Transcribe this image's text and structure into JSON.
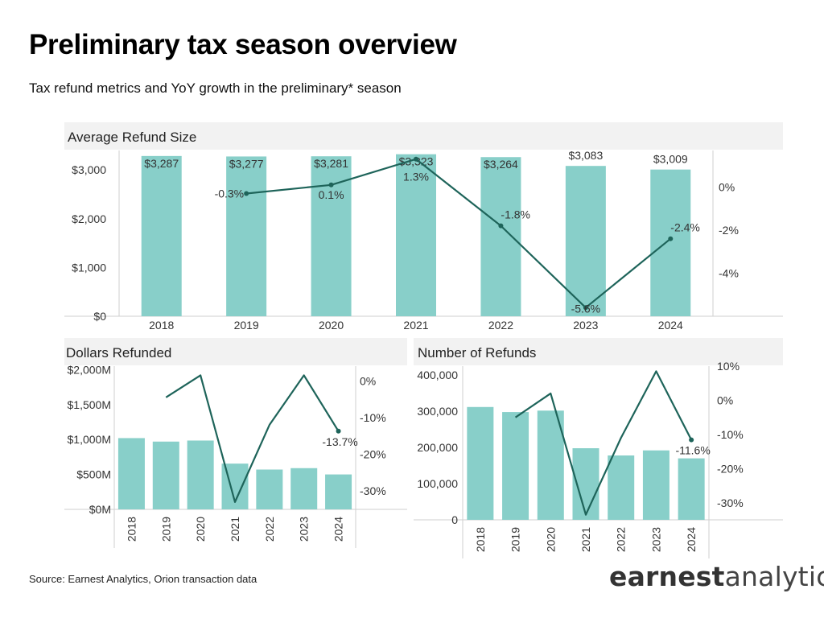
{
  "header": {
    "title": "Preliminary tax season overview",
    "subtitle": "Tax refund metrics and YoY growth in the preliminary* season"
  },
  "footer": {
    "source": "Source: Earnest Analytics, Orion transaction data",
    "logo_bold": "earnest",
    "logo_light": "analytics"
  },
  "colors": {
    "bar": "#88cfc9",
    "line": "#1e645a",
    "panel_header": "#f2f2f2"
  },
  "chart_data": [
    {
      "type": "bar",
      "title": "Average Refund Size",
      "categories": [
        "2018",
        "2019",
        "2020",
        "2021",
        "2022",
        "2023",
        "2024"
      ],
      "series": [
        {
          "values": [
            3287,
            3277,
            3281,
            3323,
            3264,
            3083,
            3009
          ],
          "labels": [
            "$3,287",
            "$3,277",
            "$3,281",
            "$3,323",
            "$3,264",
            "$3,083",
            "$3,009"
          ]
        }
      ],
      "line": {
        "values": [
          null,
          -0.3,
          0.1,
          1.3,
          -1.8,
          -5.6,
          -2.4
        ],
        "labels": [
          "",
          "-0.3%",
          "0.1%",
          "1.3%",
          "-1.8%",
          "-5.6%",
          "-2.4%"
        ]
      },
      "ylim": [
        0,
        3400
      ],
      "yticks": [
        0,
        1000,
        2000,
        3000
      ],
      "ytick_labels": [
        "$0",
        "$1,000",
        "$2,000",
        "$3,000"
      ],
      "y2lim": [
        -6,
        1.7
      ],
      "y2ticks": [
        0,
        -2,
        -4
      ],
      "y2tick_labels": [
        "0%",
        "-2%",
        "-4%"
      ]
    },
    {
      "type": "bar",
      "title": "Dollars Refunded",
      "categories": [
        "2018",
        "2019",
        "2020",
        "2021",
        "2022",
        "2023",
        "2024"
      ],
      "series": [
        {
          "values": [
            1020,
            970,
            985,
            655,
            570,
            590,
            500
          ]
        }
      ],
      "line": {
        "values": [
          null,
          -4.5,
          1.5,
          -33.0,
          -12.0,
          1.5,
          -13.7
        ],
        "labels": [
          "",
          "",
          "",
          "",
          "",
          "",
          "-13.7%"
        ]
      },
      "ylim": [
        0,
        2050
      ],
      "yticks": [
        0,
        500,
        1000,
        1500,
        2000
      ],
      "ytick_labels": [
        "$0M",
        "$500M",
        "$1,000M",
        "$1,500M",
        "$2,000M"
      ],
      "y2lim": [
        -35,
        4
      ],
      "y2ticks": [
        0,
        -10,
        -20,
        -30
      ],
      "y2tick_labels": [
        "0%",
        "-10%",
        "-20%",
        "-30%"
      ]
    },
    {
      "type": "bar",
      "title": "Number of Refunds",
      "categories": [
        "2018",
        "2019",
        "2020",
        "2021",
        "2022",
        "2023",
        "2024"
      ],
      "series": [
        {
          "values": [
            312000,
            298000,
            302000,
            198000,
            178000,
            192000,
            170000
          ]
        }
      ],
      "line": {
        "values": [
          null,
          -5.0,
          2.0,
          -33.5,
          -11.0,
          8.5,
          -11.6
        ],
        "labels": [
          "",
          "",
          "",
          "",
          "",
          "",
          "-11.6%"
        ]
      },
      "ylim": [
        0,
        425000
      ],
      "yticks": [
        0,
        100000,
        200000,
        300000,
        400000
      ],
      "ytick_labels": [
        "0",
        "100,000",
        "200,000",
        "300,000",
        "400,000"
      ],
      "y2lim": [
        -35,
        10
      ],
      "y2ticks": [
        10,
        0,
        -10,
        -20,
        -30
      ],
      "y2tick_labels": [
        "10%",
        "0%",
        "-10%",
        "-20%",
        "-30%"
      ]
    }
  ]
}
